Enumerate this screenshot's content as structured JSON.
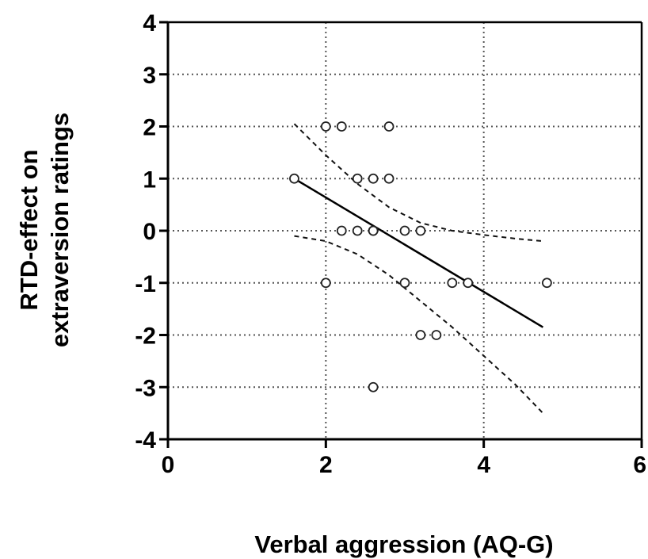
{
  "chart_data": {
    "type": "scatter",
    "xlabel": "Verbal aggression (AQ-G)",
    "ylabel_lines": [
      "RTD-effect on",
      "extraversion ratings"
    ],
    "xlim": [
      0,
      6
    ],
    "ylim": [
      -4,
      4
    ],
    "x_ticks": [
      0,
      2,
      4,
      6
    ],
    "y_ticks": [
      4,
      3,
      2,
      1,
      0,
      -1,
      -2,
      -3,
      -4
    ],
    "x_tick_labels": [
      "0",
      "2",
      "4",
      "6"
    ],
    "y_tick_labels": [
      "4",
      "3",
      "2",
      "1",
      "0",
      "-1",
      "-2",
      "-3",
      "-4"
    ],
    "grid": true,
    "points": [
      {
        "x": 1.6,
        "y": 1
      },
      {
        "x": 2.0,
        "y": 2
      },
      {
        "x": 2.2,
        "y": 2
      },
      {
        "x": 2.8,
        "y": 2
      },
      {
        "x": 2.4,
        "y": 1
      },
      {
        "x": 2.6,
        "y": 1
      },
      {
        "x": 2.8,
        "y": 1
      },
      {
        "x": 2.2,
        "y": 0
      },
      {
        "x": 2.4,
        "y": 0
      },
      {
        "x": 2.6,
        "y": 0
      },
      {
        "x": 2.6,
        "y": 0
      },
      {
        "x": 3.0,
        "y": 0
      },
      {
        "x": 3.2,
        "y": 0
      },
      {
        "x": 2.0,
        "y": -1
      },
      {
        "x": 3.0,
        "y": -1
      },
      {
        "x": 3.6,
        "y": -1
      },
      {
        "x": 3.8,
        "y": -1
      },
      {
        "x": 4.8,
        "y": -1
      },
      {
        "x": 3.2,
        "y": -2
      },
      {
        "x": 3.4,
        "y": -2
      },
      {
        "x": 2.6,
        "y": -3
      }
    ],
    "regression_line": {
      "x": [
        1.6,
        4.75
      ],
      "y": [
        1.0,
        -1.85
      ]
    },
    "confidence_band_upper": {
      "x": [
        1.6,
        2.0,
        2.4,
        2.8,
        3.2,
        3.6,
        4.0,
        4.4,
        4.75
      ],
      "y": [
        2.05,
        1.45,
        0.9,
        0.45,
        0.15,
        0.0,
        -0.08,
        -0.15,
        -0.2
      ]
    },
    "confidence_band_lower": {
      "x": [
        1.6,
        2.0,
        2.4,
        2.8,
        3.2,
        3.6,
        4.0,
        4.4,
        4.75
      ],
      "y": [
        -0.1,
        -0.2,
        -0.45,
        -0.85,
        -1.35,
        -1.85,
        -2.4,
        -2.95,
        -3.5
      ]
    }
  }
}
